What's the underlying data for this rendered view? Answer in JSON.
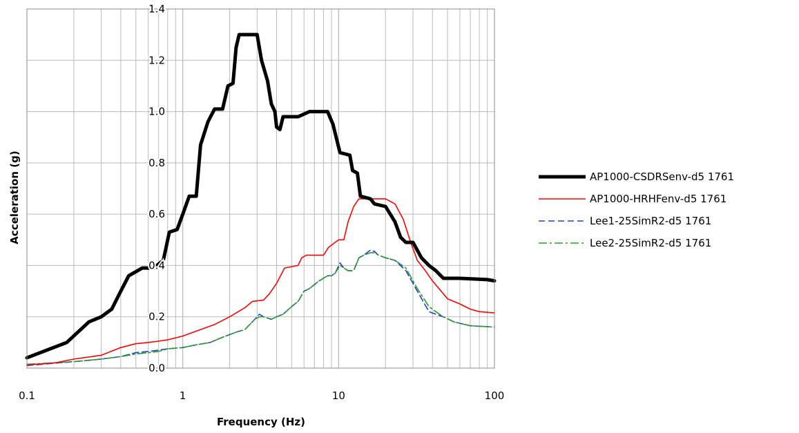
{
  "chart_data": {
    "type": "line",
    "title": "",
    "xlabel": "Frequency (Hz)",
    "ylabel": "Acceleration (g)",
    "xscale": "log",
    "xlim": [
      0.1,
      100
    ],
    "ylim": [
      0,
      1.4
    ],
    "x_ticks": [
      "0.1",
      "1",
      "10",
      "100"
    ],
    "y_ticks": [
      "0.0",
      "0.2",
      "0.4",
      "0.6",
      "0.8",
      "1.0",
      "1.2",
      "1.4"
    ],
    "grid": true,
    "legend_position": "right",
    "series": [
      {
        "name": "AP1000-CSDRSenv-d5 1761",
        "color": "#000000",
        "style": "solid-thick",
        "points": [
          [
            0.1,
            0.04
          ],
          [
            0.18,
            0.1
          ],
          [
            0.25,
            0.18
          ],
          [
            0.3,
            0.2
          ],
          [
            0.35,
            0.23
          ],
          [
            0.4,
            0.3
          ],
          [
            0.45,
            0.36
          ],
          [
            0.55,
            0.39
          ],
          [
            0.65,
            0.39
          ],
          [
            0.75,
            0.42
          ],
          [
            0.82,
            0.53
          ],
          [
            0.92,
            0.54
          ],
          [
            1.0,
            0.6
          ],
          [
            1.1,
            0.67
          ],
          [
            1.22,
            0.67
          ],
          [
            1.3,
            0.87
          ],
          [
            1.45,
            0.96
          ],
          [
            1.6,
            1.01
          ],
          [
            1.8,
            1.01
          ],
          [
            1.95,
            1.1
          ],
          [
            2.1,
            1.11
          ],
          [
            2.2,
            1.25
          ],
          [
            2.3,
            1.3
          ],
          [
            3.0,
            1.3
          ],
          [
            3.2,
            1.2
          ],
          [
            3.5,
            1.12
          ],
          [
            3.7,
            1.03
          ],
          [
            3.9,
            1.0
          ],
          [
            4.0,
            0.94
          ],
          [
            4.2,
            0.93
          ],
          [
            4.4,
            0.98
          ],
          [
            5.5,
            0.98
          ],
          [
            6.5,
            1.0
          ],
          [
            8.5,
            1.0
          ],
          [
            9.2,
            0.95
          ],
          [
            10.2,
            0.84
          ],
          [
            11.8,
            0.83
          ],
          [
            12.3,
            0.77
          ],
          [
            13.2,
            0.76
          ],
          [
            13.8,
            0.67
          ],
          [
            16,
            0.66
          ],
          [
            17,
            0.64
          ],
          [
            20,
            0.63
          ],
          [
            23,
            0.57
          ],
          [
            25,
            0.51
          ],
          [
            27,
            0.49
          ],
          [
            30,
            0.49
          ],
          [
            34,
            0.43
          ],
          [
            38,
            0.4
          ],
          [
            42,
            0.38
          ],
          [
            47,
            0.35
          ],
          [
            60,
            0.35
          ],
          [
            90,
            0.345
          ],
          [
            100,
            0.34
          ]
        ]
      },
      {
        "name": "AP1000-HRHFenv-d5 1761",
        "color": "#ff0000",
        "style": "solid",
        "points": [
          [
            0.1,
            0.012
          ],
          [
            0.15,
            0.02
          ],
          [
            0.2,
            0.035
          ],
          [
            0.3,
            0.05
          ],
          [
            0.4,
            0.08
          ],
          [
            0.5,
            0.095
          ],
          [
            0.6,
            0.1
          ],
          [
            0.7,
            0.105
          ],
          [
            0.8,
            0.11
          ],
          [
            1.0,
            0.125
          ],
          [
            1.3,
            0.15
          ],
          [
            1.6,
            0.17
          ],
          [
            2.0,
            0.2
          ],
          [
            2.5,
            0.235
          ],
          [
            2.8,
            0.26
          ],
          [
            3.3,
            0.265
          ],
          [
            3.6,
            0.29
          ],
          [
            4.0,
            0.33
          ],
          [
            4.5,
            0.39
          ],
          [
            5.5,
            0.4
          ],
          [
            5.8,
            0.43
          ],
          [
            6.2,
            0.44
          ],
          [
            8.0,
            0.44
          ],
          [
            8.6,
            0.47
          ],
          [
            9.5,
            0.49
          ],
          [
            10,
            0.5
          ],
          [
            10.8,
            0.5
          ],
          [
            11.5,
            0.57
          ],
          [
            12.5,
            0.63
          ],
          [
            13.5,
            0.66
          ],
          [
            20,
            0.66
          ],
          [
            23,
            0.64
          ],
          [
            26,
            0.58
          ],
          [
            29,
            0.49
          ],
          [
            32,
            0.42
          ],
          [
            36,
            0.38
          ],
          [
            40,
            0.34
          ],
          [
            50,
            0.27
          ],
          [
            60,
            0.25
          ],
          [
            70,
            0.23
          ],
          [
            80,
            0.22
          ],
          [
            100,
            0.215
          ]
        ]
      },
      {
        "name": "Lee1-25SimR2-d5 1761",
        "color": "#1f3fd0",
        "style": "dashed",
        "points": [
          [
            0.1,
            0.01
          ],
          [
            0.2,
            0.025
          ],
          [
            0.3,
            0.035
          ],
          [
            0.4,
            0.045
          ],
          [
            0.5,
            0.06
          ],
          [
            0.6,
            0.065
          ],
          [
            0.7,
            0.07
          ],
          [
            0.8,
            0.075
          ],
          [
            1.0,
            0.08
          ],
          [
            1.2,
            0.09
          ],
          [
            1.5,
            0.1
          ],
          [
            1.8,
            0.12
          ],
          [
            2.2,
            0.14
          ],
          [
            2.5,
            0.15
          ],
          [
            2.9,
            0.19
          ],
          [
            3.1,
            0.21
          ],
          [
            3.3,
            0.2
          ],
          [
            3.7,
            0.19
          ],
          [
            4.0,
            0.2
          ],
          [
            4.4,
            0.21
          ],
          [
            5.0,
            0.24
          ],
          [
            5.5,
            0.26
          ],
          [
            6.0,
            0.3
          ],
          [
            6.5,
            0.31
          ],
          [
            7.5,
            0.34
          ],
          [
            8.5,
            0.36
          ],
          [
            9.0,
            0.36
          ],
          [
            9.5,
            0.37
          ],
          [
            10.2,
            0.41
          ],
          [
            10.8,
            0.39
          ],
          [
            11.5,
            0.38
          ],
          [
            12.5,
            0.38
          ],
          [
            13.5,
            0.43
          ],
          [
            14.5,
            0.44
          ],
          [
            16,
            0.46
          ],
          [
            17,
            0.455
          ],
          [
            18,
            0.44
          ],
          [
            20,
            0.43
          ],
          [
            23,
            0.42
          ],
          [
            27,
            0.38
          ],
          [
            32,
            0.3
          ],
          [
            38,
            0.22
          ],
          [
            42,
            0.21
          ],
          [
            47,
            0.2
          ],
          [
            55,
            0.18
          ],
          [
            70,
            0.165
          ],
          [
            100,
            0.16
          ]
        ]
      },
      {
        "name": "Lee2-25SimR2-d5 1761",
        "color": "#2a9b2a",
        "style": "dash-dot",
        "points": [
          [
            0.1,
            0.015
          ],
          [
            0.2,
            0.025
          ],
          [
            0.3,
            0.035
          ],
          [
            0.4,
            0.045
          ],
          [
            0.5,
            0.055
          ],
          [
            0.6,
            0.06
          ],
          [
            0.7,
            0.065
          ],
          [
            0.8,
            0.075
          ],
          [
            1.0,
            0.08
          ],
          [
            1.2,
            0.09
          ],
          [
            1.5,
            0.1
          ],
          [
            1.8,
            0.12
          ],
          [
            2.2,
            0.14
          ],
          [
            2.5,
            0.15
          ],
          [
            2.9,
            0.19
          ],
          [
            3.1,
            0.2
          ],
          [
            3.3,
            0.2
          ],
          [
            3.7,
            0.19
          ],
          [
            4.0,
            0.2
          ],
          [
            4.4,
            0.21
          ],
          [
            5.0,
            0.24
          ],
          [
            5.5,
            0.26
          ],
          [
            6.0,
            0.3
          ],
          [
            6.5,
            0.31
          ],
          [
            7.5,
            0.34
          ],
          [
            8.5,
            0.36
          ],
          [
            9.0,
            0.36
          ],
          [
            9.5,
            0.37
          ],
          [
            10.2,
            0.4
          ],
          [
            10.8,
            0.39
          ],
          [
            11.5,
            0.38
          ],
          [
            12.5,
            0.38
          ],
          [
            13.5,
            0.43
          ],
          [
            14.5,
            0.44
          ],
          [
            16,
            0.45
          ],
          [
            17,
            0.45
          ],
          [
            18,
            0.44
          ],
          [
            20,
            0.43
          ],
          [
            23,
            0.42
          ],
          [
            27,
            0.39
          ],
          [
            32,
            0.31
          ],
          [
            38,
            0.24
          ],
          [
            42,
            0.22
          ],
          [
            47,
            0.2
          ],
          [
            55,
            0.18
          ],
          [
            70,
            0.165
          ],
          [
            100,
            0.16
          ]
        ]
      }
    ]
  }
}
